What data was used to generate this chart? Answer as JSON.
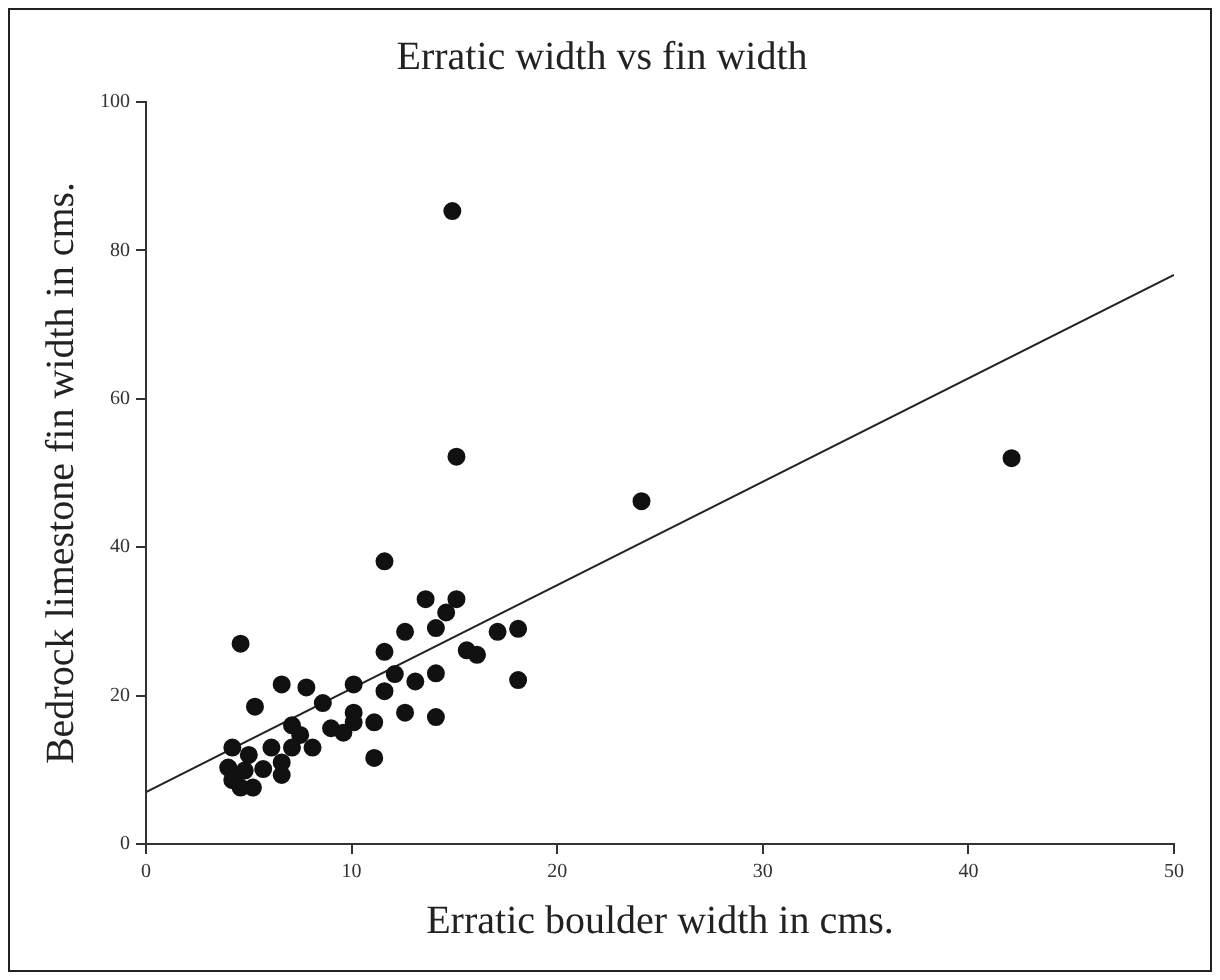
{
  "chart_data": {
    "type": "scatter",
    "title": "Erratic width vs fin width",
    "xlabel": "Erratic boulder width in cms.",
    "ylabel": "Bedrock limestone fin width in cms.",
    "xlim": [
      0,
      50
    ],
    "xticks": [
      0,
      10,
      20,
      30,
      40,
      50
    ],
    "ylim": [
      0,
      100
    ],
    "yticks": [
      0,
      20,
      40,
      60,
      80,
      100
    ],
    "grid": false,
    "legend": false,
    "marker": "circle",
    "series": [
      {
        "type": "scatter",
        "color": "#111111",
        "x": [
          14.9,
          15.1,
          11.6,
          13.6,
          15.1,
          14.6,
          14.1,
          12.6,
          17.1,
          18.1,
          4.6,
          11.6,
          15.6,
          16.1,
          12.1,
          14.1,
          13.1,
          18.1,
          6.6,
          7.8,
          10.1,
          11.6,
          5.3,
          8.6,
          12.6,
          14.1,
          10.1,
          11.1,
          7.1,
          9.0,
          9.6,
          7.5,
          10.1,
          4.2,
          6.1,
          8.1,
          7.1,
          5.0,
          11.1,
          6.6,
          4.0,
          5.7,
          6.6,
          4.2,
          4.6,
          5.2,
          4.8,
          24.1,
          42.1
        ],
        "values": [
          85.3,
          52.2,
          38.1,
          33.0,
          33.0,
          31.2,
          29.1,
          28.6,
          28.6,
          29.0,
          27.0,
          25.9,
          26.1,
          25.5,
          22.9,
          23.0,
          21.9,
          22.1,
          21.5,
          21.1,
          21.5,
          20.6,
          18.5,
          19.0,
          17.7,
          17.1,
          17.7,
          16.4,
          16.0,
          15.6,
          15.0,
          14.7,
          16.4,
          13.0,
          13.0,
          13.0,
          13.0,
          12.0,
          11.6,
          11.0,
          10.3,
          10.1,
          9.3,
          8.6,
          7.6,
          7.6,
          9.9,
          46.2,
          52.0
        ]
      },
      {
        "type": "line",
        "color": "#222222",
        "marker": "none",
        "x": [
          0,
          50
        ],
        "values": [
          7.0,
          76.7
        ]
      }
    ]
  }
}
